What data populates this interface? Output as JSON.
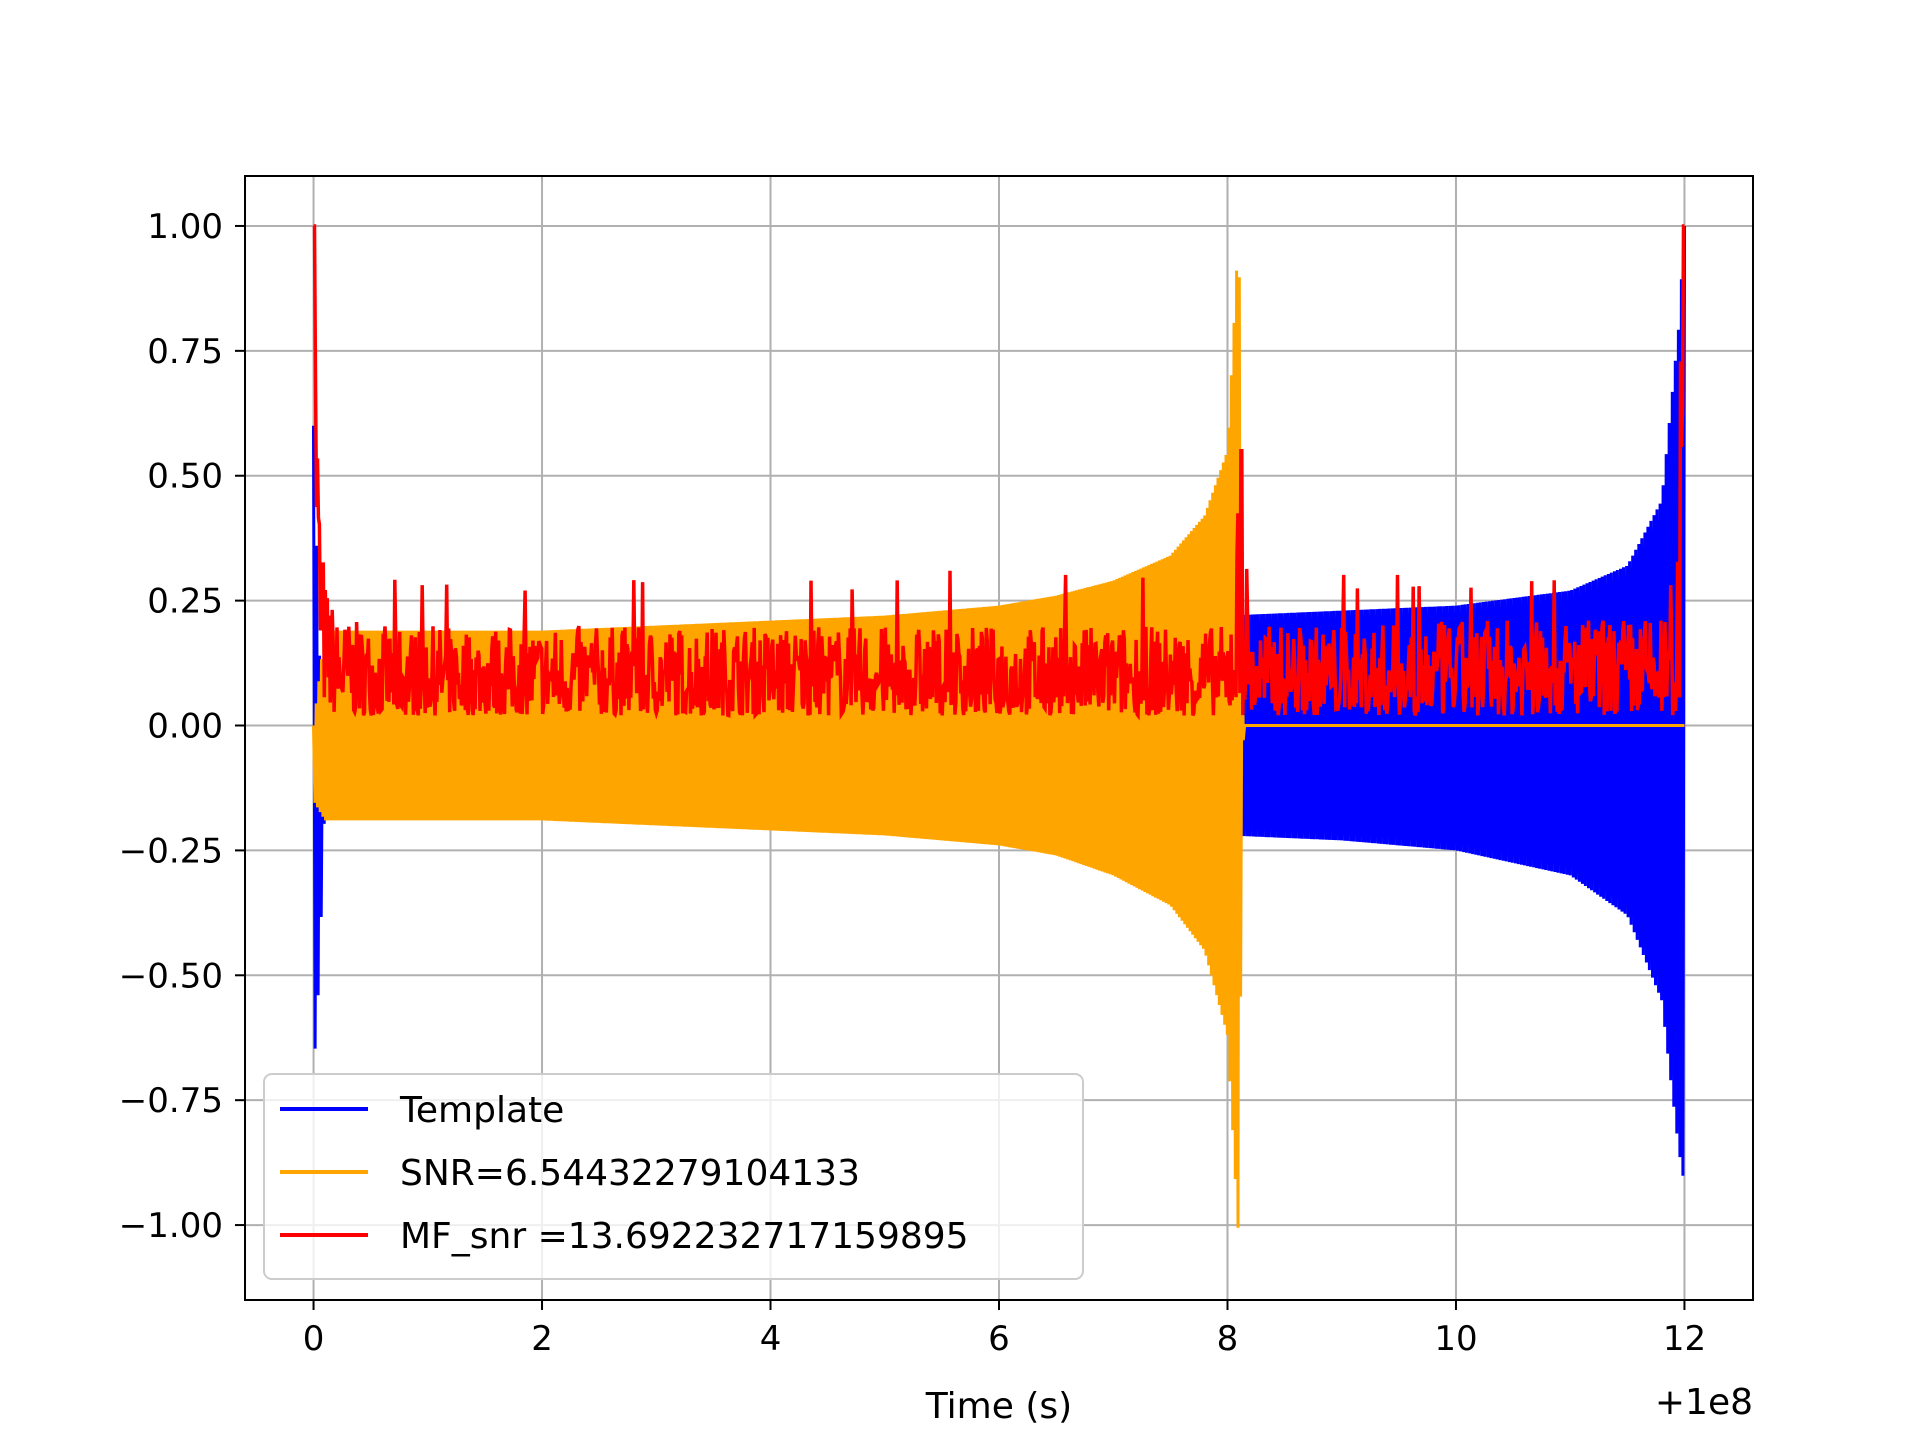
{
  "chart_data": {
    "type": "line",
    "title": "",
    "xlabel": "Time (s)",
    "ylabel": "",
    "x_offset_label": "+1e8",
    "xlim": [
      -0.6,
      12.6
    ],
    "ylim": [
      -1.15,
      1.1
    ],
    "xticks": [
      0,
      2,
      4,
      6,
      8,
      10,
      12
    ],
    "xtick_labels": [
      "0",
      "2",
      "4",
      "6",
      "8",
      "10",
      "12"
    ],
    "yticks": [
      1.0,
      0.75,
      0.5,
      0.25,
      0.0,
      -0.25,
      -0.5,
      -0.75,
      -1.0
    ],
    "ytick_labels": [
      "1.00",
      "0.75",
      "0.50",
      "0.25",
      "0.00",
      "−0.25",
      "−0.50",
      "−0.75",
      "−1.00"
    ],
    "grid": true,
    "legend_position": "lower-left",
    "series": [
      {
        "name": "Template",
        "color": "#0000ff",
        "description_points": {
          "x": [
            0.0,
            0.05,
            0.1,
            1,
            2,
            3,
            4,
            5,
            6,
            7,
            8,
            9,
            10,
            11,
            11.5,
            11.8,
            11.95,
            12.0
          ],
          "upper": [
            0.6,
            0.15,
            0.0,
            0.0,
            0.0,
            0.0,
            0.2,
            0.2,
            0.21,
            0.21,
            0.22,
            0.23,
            0.24,
            0.27,
            0.32,
            0.45,
            0.8,
            1.0
          ],
          "lower": [
            -0.7,
            -0.5,
            -0.15,
            -0.05,
            -0.05,
            -0.05,
            -0.2,
            -0.2,
            -0.21,
            -0.21,
            -0.22,
            -0.23,
            -0.25,
            -0.3,
            -0.38,
            -0.55,
            -0.85,
            -0.92
          ]
        }
      },
      {
        "name": "SNR=6.54432279104133",
        "color": "#ffa500",
        "description_points": {
          "x": [
            0.0,
            0.1,
            1,
            2,
            3,
            4,
            5,
            6,
            6.5,
            7,
            7.5,
            7.8,
            8.0,
            8.1,
            8.13,
            8.15,
            12.0
          ],
          "upper": [
            0.0,
            0.19,
            0.19,
            0.19,
            0.2,
            0.21,
            0.22,
            0.24,
            0.26,
            0.29,
            0.34,
            0.42,
            0.55,
            1.0,
            0.1,
            0.0,
            0.0
          ],
          "lower": [
            -0.15,
            -0.19,
            -0.19,
            -0.19,
            -0.2,
            -0.21,
            -0.22,
            -0.24,
            -0.26,
            -0.3,
            -0.36,
            -0.45,
            -0.62,
            -1.04,
            -0.05,
            0.0,
            0.0
          ]
        }
      },
      {
        "name": "MF_snr =13.692232717159895",
        "color": "#ff0000",
        "description_points": {
          "x": [
            0.0,
            0.05,
            0.1,
            0.2,
            0.5,
            1,
            4,
            8,
            8.12,
            8.2,
            11.9,
            12.0
          ],
          "upper": [
            1.0,
            0.5,
            0.3,
            0.22,
            0.2,
            0.2,
            0.2,
            0.2,
            0.55,
            0.2,
            0.22,
            1.0
          ],
          "lower": [
            0.6,
            0.1,
            0.03,
            0.02,
            0.02,
            0.02,
            0.02,
            0.02,
            0.02,
            0.02,
            0.02,
            0.02
          ]
        }
      }
    ]
  }
}
